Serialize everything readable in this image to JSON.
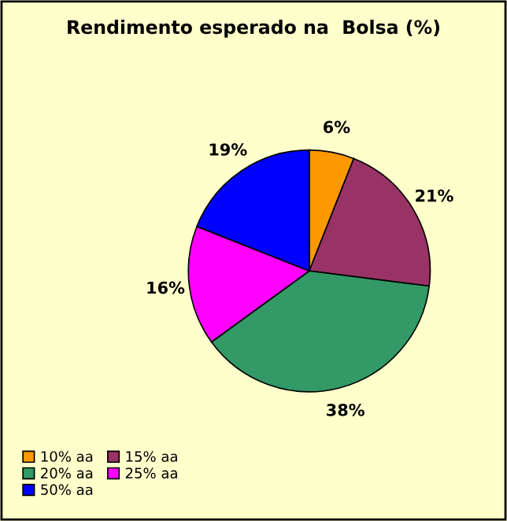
{
  "chart_data": {
    "type": "pie",
    "title": "Rendimento esperado na  Bolsa (%)",
    "categories": [
      "10% aa",
      "15% aa",
      "20% aa",
      "25% aa",
      "50% aa"
    ],
    "values": [
      6,
      21,
      38,
      16,
      19
    ],
    "colors": [
      "#ff9900",
      "#993366",
      "#339966",
      "#ff00ff",
      "#0000ff"
    ],
    "value_labels": [
      "6%",
      "21%",
      "38%",
      "16%",
      "19%"
    ],
    "legend": "bottom left"
  }
}
